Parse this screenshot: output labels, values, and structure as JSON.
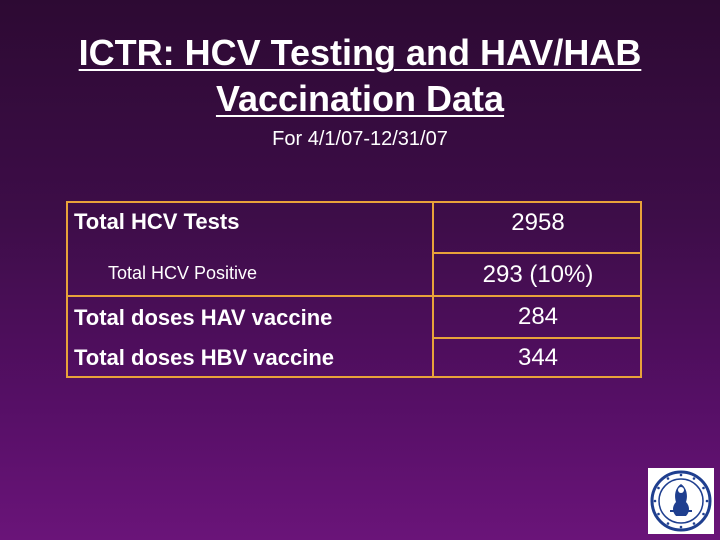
{
  "slide": {
    "title_line1": "ICTR: HCV Testing and HAV/HAB",
    "title_line2": "Vaccination Data",
    "subtitle": "For 4/1/07-12/31/07"
  },
  "table": {
    "rows": [
      {
        "label": "Total HCV Tests",
        "value": "2958"
      },
      {
        "label": "Total HCV Positive",
        "value": "293 (10%)"
      },
      {
        "label": "Total doses HAV vaccine",
        "value": "284"
      },
      {
        "label": "Total doses HBV vaccine",
        "value": "344"
      }
    ]
  },
  "colors": {
    "border": "#e8a23a",
    "background_top": "#2d0a33",
    "background_bottom": "#6a1479",
    "seal_blue": "#1f3f8f"
  },
  "logo": {
    "icon": "university-seal-icon"
  }
}
